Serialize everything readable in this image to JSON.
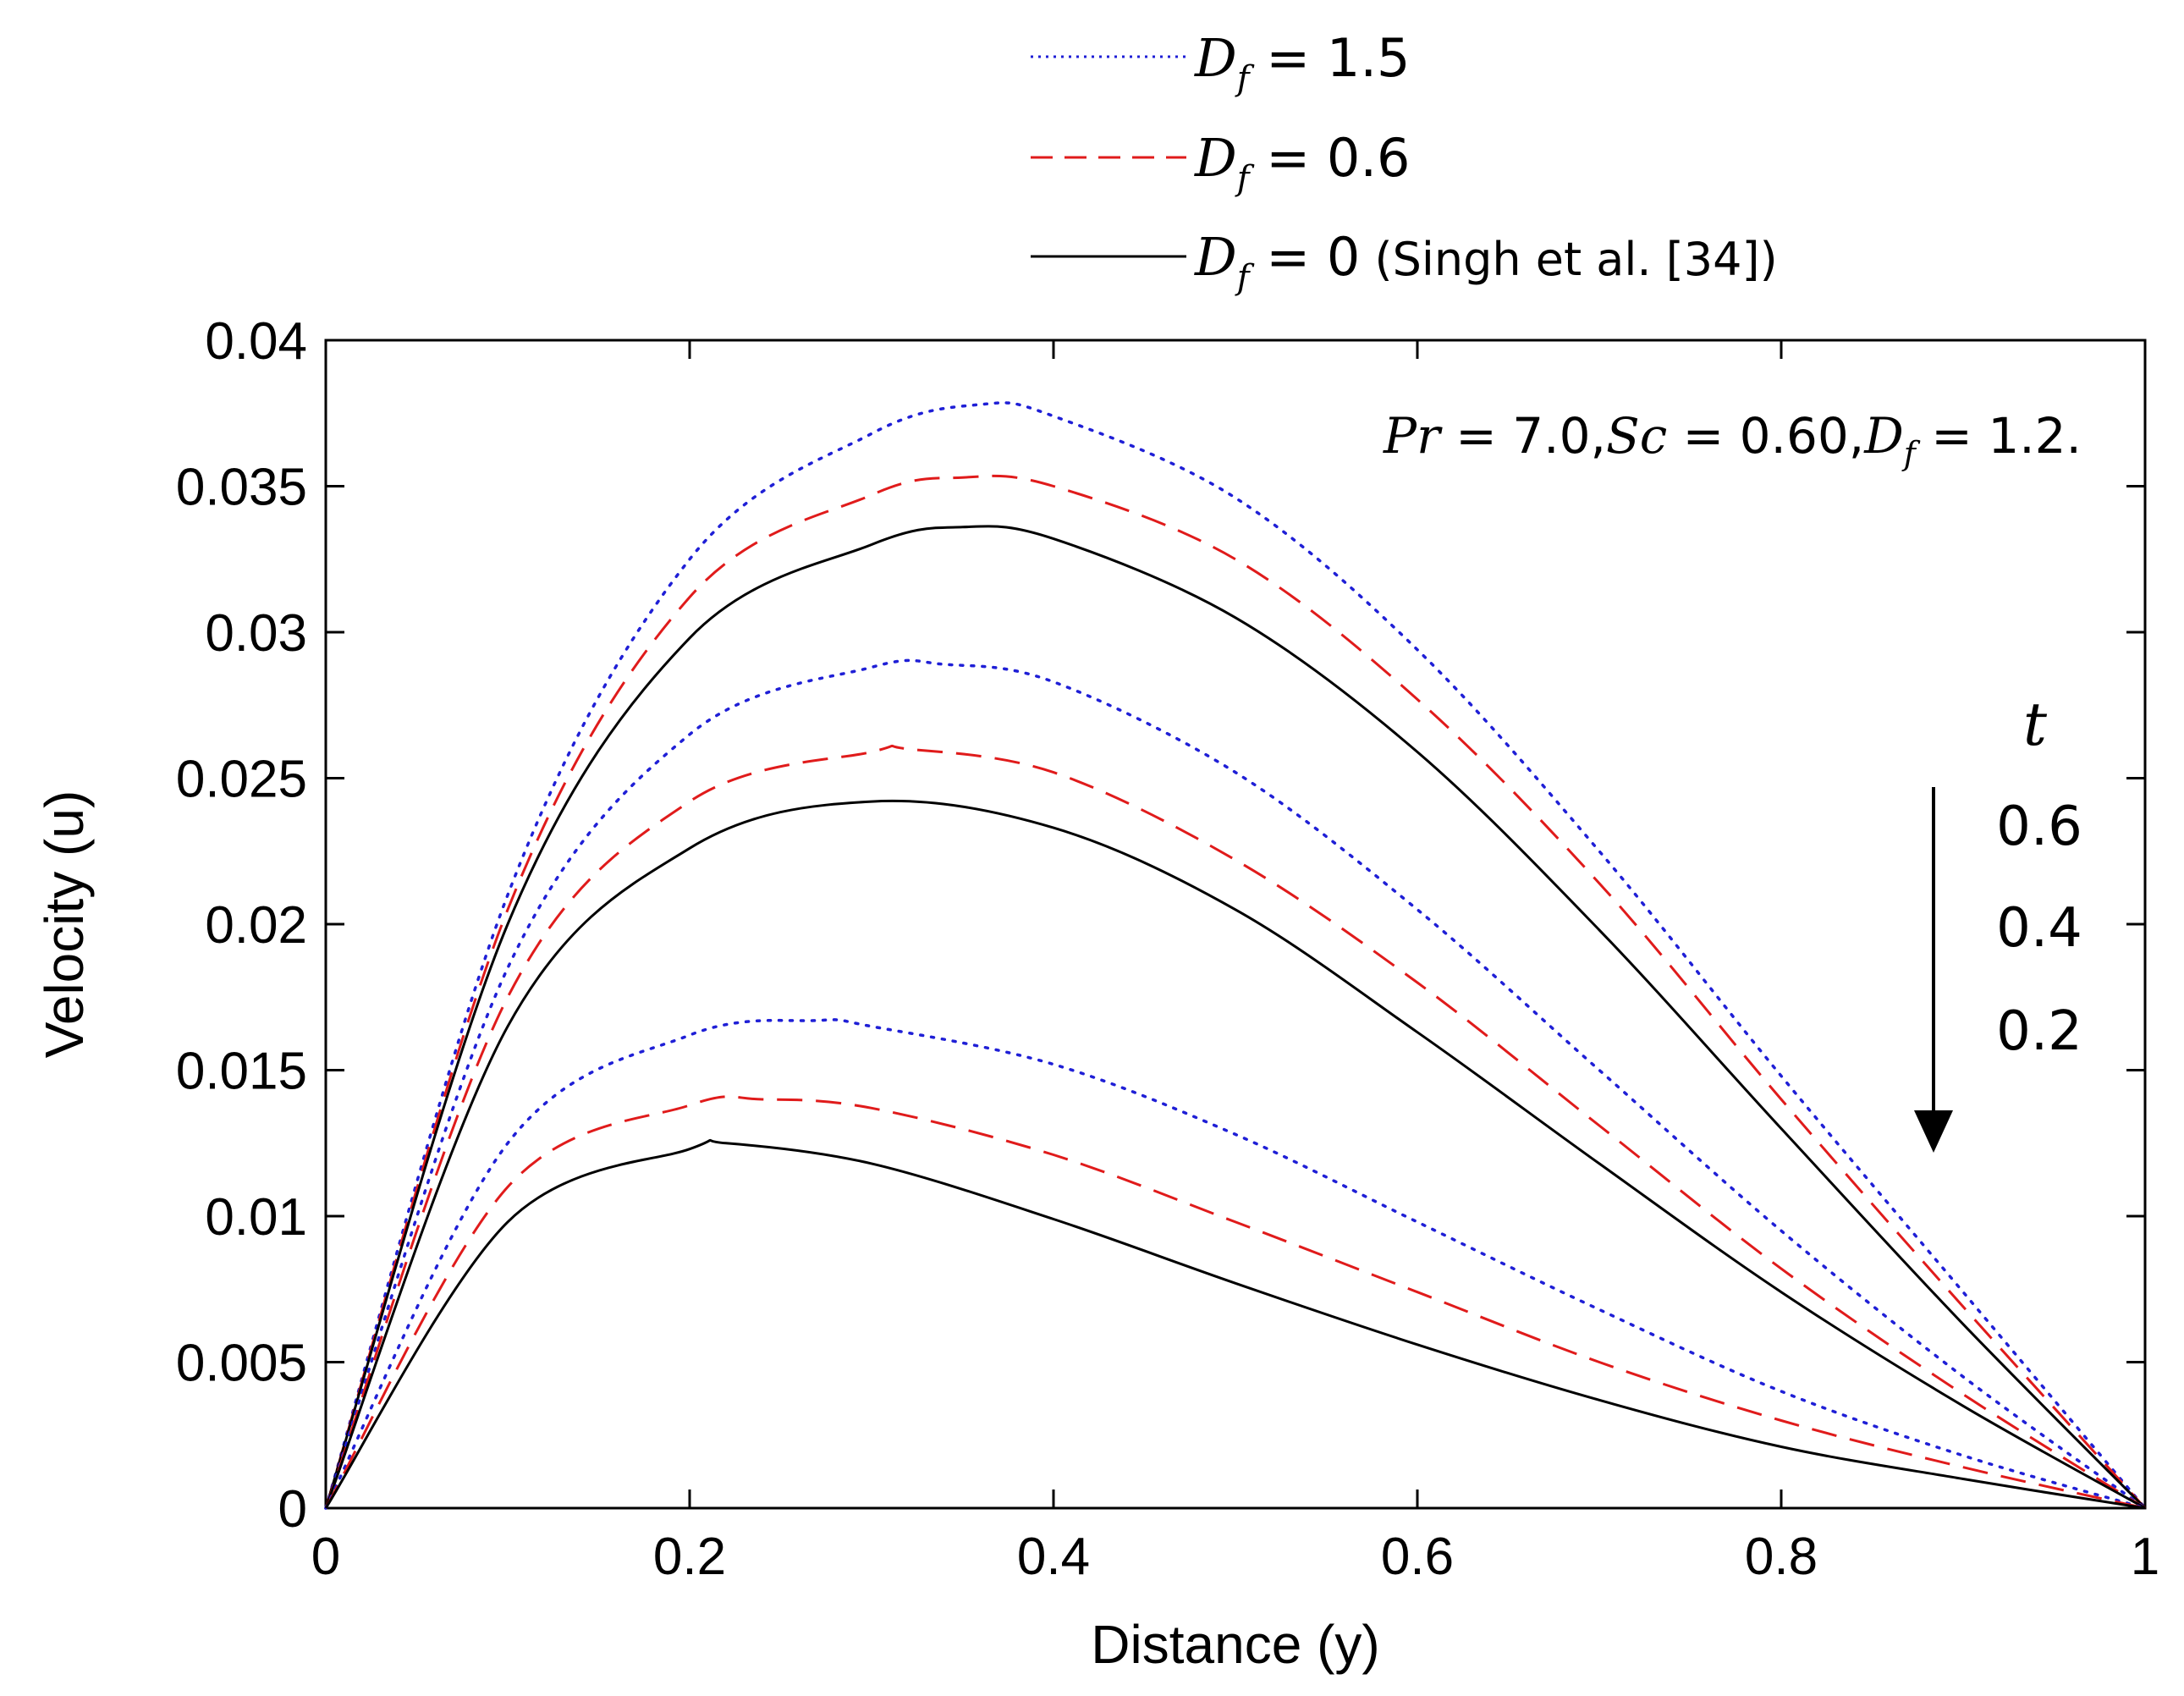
{
  "chart_data": {
    "type": "line",
    "title": "",
    "xlabel": "Distance (y)",
    "ylabel": "Velocity (u)",
    "xlim": [
      0,
      1
    ],
    "ylim": [
      0,
      0.04
    ],
    "xticks": [
      0,
      0.2,
      0.4,
      0.6,
      0.8,
      1
    ],
    "xtick_labels": [
      "0",
      "0.2",
      "0.4",
      "0.6",
      "0.8",
      "1"
    ],
    "yticks": [
      0,
      0.005,
      0.01,
      0.015,
      0.02,
      0.025,
      0.03,
      0.035,
      0.04
    ],
    "ytick_labels": [
      "0",
      "0.005",
      "0.01",
      "0.015",
      "0.02",
      "0.025",
      "0.03",
      "0.035",
      "0.04"
    ],
    "grid": false,
    "legend_position": "top, above plot",
    "legend": [
      {
        "label": "D_f = 1.5",
        "base": "D",
        "sub": "f",
        "rest": " = 1.5",
        "style": "dotted",
        "color": "#1f1fd6"
      },
      {
        "label": "D_f = 0.6",
        "base": "D",
        "sub": "f",
        "rest": " = 0.6",
        "style": "dashed",
        "color": "#e01b1b"
      },
      {
        "label": "D_f = 0 (Singh et al. [34])",
        "base": "D",
        "sub": "f",
        "rest": " = 0",
        "rest_plain": " (Singh et al. [34])",
        "style": "solid",
        "color": "#000000"
      }
    ],
    "annotation": "Pr = 7.0, Sc = 0.60, D_f = 1.2.",
    "annotation_parts": {
      "a": "Pr",
      "b": " = 7.0,",
      "c": "Sc",
      "d": " = 0.60,",
      "e": "D",
      "f": "f",
      "g": " = 1.2."
    },
    "time_label": "t",
    "time_values": [
      "0.6",
      "0.4",
      "0.2"
    ],
    "series": [
      {
        "name": "D_f = 1.5, t = 0.6",
        "style": "dotted",
        "color": "#1f1fd6",
        "x": [
          0,
          0.1,
          0.2,
          0.3,
          0.36,
          0.4,
          0.5,
          0.6,
          0.7,
          0.8,
          0.9,
          1.0
        ],
        "y": [
          0,
          0.021,
          0.0325,
          0.0368,
          0.0378,
          0.0374,
          0.0346,
          0.0294,
          0.0225,
          0.0148,
          0.0074,
          0
        ]
      },
      {
        "name": "D_f = 0.6, t = 0.6",
        "style": "dashed",
        "color": "#e01b1b",
        "x": [
          0,
          0.1,
          0.2,
          0.3,
          0.35,
          0.4,
          0.5,
          0.6,
          0.7,
          0.8,
          0.9,
          1.0
        ],
        "y": [
          0,
          0.0205,
          0.0312,
          0.0347,
          0.0353,
          0.035,
          0.0325,
          0.0277,
          0.0214,
          0.014,
          0.0069,
          0
        ]
      },
      {
        "name": "D_f = 0, t = 0.6",
        "style": "solid",
        "color": "#000000",
        "x": [
          0,
          0.1,
          0.2,
          0.3,
          0.35,
          0.4,
          0.5,
          0.6,
          0.7,
          0.8,
          0.9,
          1.0
        ],
        "y": [
          0,
          0.02,
          0.0298,
          0.033,
          0.0336,
          0.0332,
          0.0305,
          0.0259,
          0.0198,
          0.013,
          0.0063,
          0
        ]
      },
      {
        "name": "D_f = 1.5, t = 0.4",
        "style": "dotted",
        "color": "#1f1fd6",
        "x": [
          0,
          0.1,
          0.2,
          0.3,
          0.34,
          0.4,
          0.5,
          0.6,
          0.7,
          0.8,
          0.9,
          1.0
        ],
        "y": [
          0,
          0.0185,
          0.0265,
          0.0288,
          0.0289,
          0.0283,
          0.0252,
          0.0205,
          0.015,
          0.0095,
          0.0045,
          0
        ]
      },
      {
        "name": "D_f = 0.6, t = 0.4",
        "style": "dashed",
        "color": "#e01b1b",
        "x": [
          0,
          0.1,
          0.2,
          0.3,
          0.32,
          0.4,
          0.5,
          0.6,
          0.7,
          0.8,
          0.9,
          1.0
        ],
        "y": [
          0,
          0.0175,
          0.0242,
          0.0259,
          0.026,
          0.0252,
          0.0222,
          0.018,
          0.0131,
          0.0082,
          0.0039,
          0
        ]
      },
      {
        "name": "D_f = 0, t = 0.4",
        "style": "solid",
        "color": "#000000",
        "x": [
          0,
          0.1,
          0.2,
          0.3,
          0.4,
          0.5,
          0.6,
          0.7,
          0.8,
          0.9,
          1.0
        ],
        "y": [
          0,
          0.0165,
          0.0226,
          0.0242,
          0.0233,
          0.0205,
          0.0163,
          0.0118,
          0.0074,
          0.0035,
          0
        ]
      },
      {
        "name": "D_f = 1.5, t = 0.2",
        "style": "dotted",
        "color": "#1f1fd6",
        "x": [
          0,
          0.1,
          0.2,
          0.27,
          0.3,
          0.4,
          0.5,
          0.6,
          0.7,
          0.8,
          0.9,
          1.0
        ],
        "y": [
          0,
          0.0125,
          0.0162,
          0.0167,
          0.0165,
          0.0152,
          0.0128,
          0.0098,
          0.0068,
          0.004,
          0.0018,
          0
        ]
      },
      {
        "name": "D_f = 0.6, t = 0.2",
        "style": "dashed",
        "color": "#e01b1b",
        "x": [
          0,
          0.1,
          0.2,
          0.24,
          0.3,
          0.4,
          0.5,
          0.6,
          0.7,
          0.8,
          0.9,
          1.0
        ],
        "y": [
          0,
          0.011,
          0.0138,
          0.014,
          0.0137,
          0.0121,
          0.0098,
          0.0074,
          0.005,
          0.003,
          0.0014,
          0
        ]
      },
      {
        "name": "D_f = 0, t = 0.2",
        "style": "solid",
        "color": "#000000",
        "x": [
          0,
          0.1,
          0.2,
          0.22,
          0.3,
          0.4,
          0.5,
          0.6,
          0.7,
          0.8,
          0.9,
          1.0
        ],
        "y": [
          0,
          0.0098,
          0.0123,
          0.0125,
          0.0118,
          0.0099,
          0.0077,
          0.0056,
          0.0037,
          0.0021,
          0.001,
          0
        ]
      }
    ]
  }
}
